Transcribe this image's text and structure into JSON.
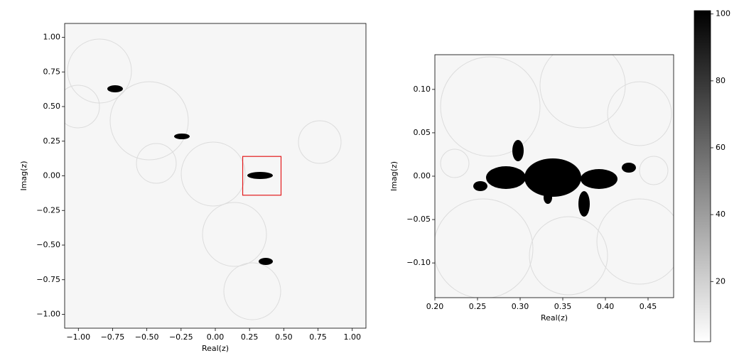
{
  "chart_data": [
    {
      "type": "heatmap",
      "xlabel": "Real(z)",
      "ylabel": "Imag(z)",
      "xlim": [
        -1.1,
        1.1
      ],
      "ylim": [
        -1.1,
        1.1
      ],
      "xticks": [
        {
          "value": -1,
          "label": "−1.00"
        },
        {
          "value": -0.75,
          "label": "−0.75"
        },
        {
          "value": -0.5,
          "label": "−0.50"
        },
        {
          "value": -0.25,
          "label": "−0.25"
        },
        {
          "value": 0,
          "label": "0.00"
        },
        {
          "value": 0.25,
          "label": "0.25"
        },
        {
          "value": 0.5,
          "label": "0.50"
        },
        {
          "value": 0.75,
          "label": "0.75"
        },
        {
          "value": 1,
          "label": "1.00"
        }
      ],
      "yticks": [
        {
          "value": -1,
          "label": "−1.00"
        },
        {
          "value": -0.75,
          "label": "−0.75"
        },
        {
          "value": -0.5,
          "label": "−0.50"
        },
        {
          "value": -0.25,
          "label": "−0.25"
        },
        {
          "value": 0,
          "label": "0.00"
        },
        {
          "value": 0.25,
          "label": "0.25"
        },
        {
          "value": 0.5,
          "label": "0.50"
        },
        {
          "value": 0.75,
          "label": "0.75"
        },
        {
          "value": 1,
          "label": "1.00"
        }
      ],
      "zoom_box": {
        "xlim": [
          0.2,
          0.48
        ],
        "ylim": [
          -0.14,
          0.14
        ],
        "color": "#e31a1c"
      }
    },
    {
      "type": "heatmap",
      "xlabel": "Real(z)",
      "ylabel": "Imag(z)",
      "xlim": [
        0.2,
        0.48
      ],
      "ylim": [
        -0.14,
        0.14
      ],
      "xticks": [
        {
          "value": 0.2,
          "label": "0.20"
        },
        {
          "value": 0.25,
          "label": "0.25"
        },
        {
          "value": 0.3,
          "label": "0.30"
        },
        {
          "value": 0.35,
          "label": "0.35"
        },
        {
          "value": 0.4,
          "label": "0.40"
        },
        {
          "value": 0.45,
          "label": "0.45"
        }
      ],
      "yticks": [
        {
          "value": -0.1,
          "label": "−0.10"
        },
        {
          "value": -0.05,
          "label": "−0.05"
        },
        {
          "value": 0,
          "label": "0.00"
        },
        {
          "value": 0.05,
          "label": "0.05"
        },
        {
          "value": 0.1,
          "label": "0.10"
        }
      ]
    },
    {
      "type": "colorbar",
      "ylim": [
        2,
        101
      ],
      "yticks": [
        20,
        40,
        60,
        80,
        100
      ],
      "colors": [
        "#ffffff",
        "#000000"
      ]
    }
  ]
}
